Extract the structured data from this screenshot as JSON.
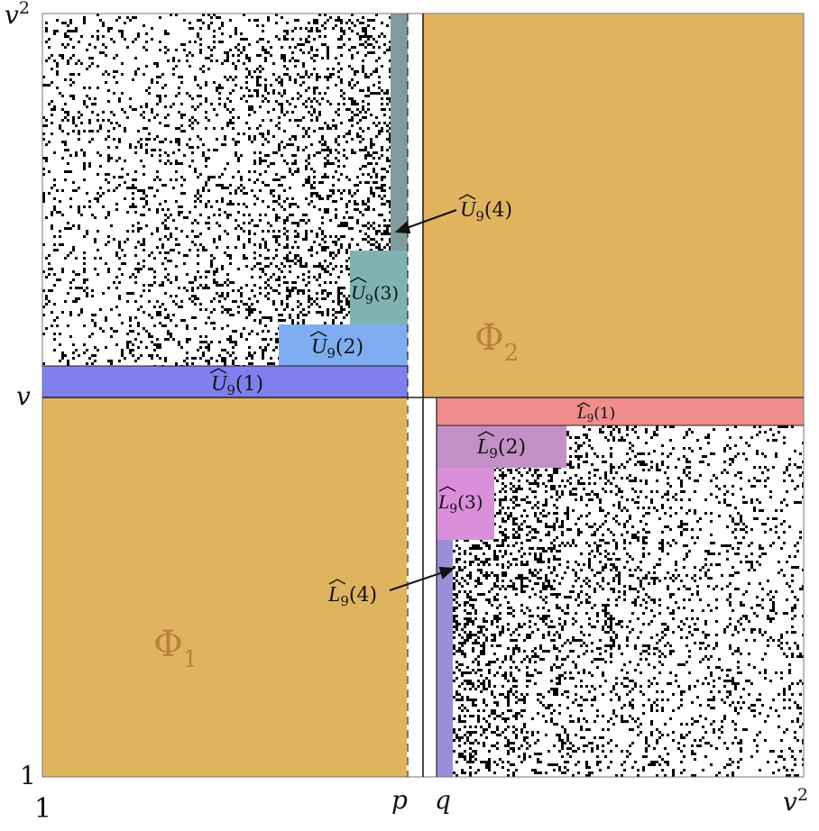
{
  "axes": {
    "x_origin": "1",
    "y_origin": "1",
    "y_mid": "v",
    "y_top": "v",
    "y_top_sup": "2",
    "x_p": "p",
    "x_q": "q",
    "x_end": "v",
    "x_end_sup": "2"
  },
  "regions": {
    "phi1": {
      "sym": "Φ",
      "sub": "1"
    },
    "phi2": {
      "sym": "Φ",
      "sub": "2"
    }
  },
  "upper_blocks": [
    {
      "letter": "U",
      "sub": "9",
      "arg": "(1)"
    },
    {
      "letter": "U",
      "sub": "9",
      "arg": "(2)"
    },
    {
      "letter": "U",
      "sub": "9",
      "arg": "(3)"
    },
    {
      "letter": "U",
      "sub": "9",
      "arg": "(4)"
    }
  ],
  "lower_blocks": [
    {
      "letter": "L",
      "sub": "9",
      "arg": "(1)"
    },
    {
      "letter": "L",
      "sub": "9",
      "arg": "(2)"
    },
    {
      "letter": "L",
      "sub": "9",
      "arg": "(3)"
    },
    {
      "letter": "L",
      "sub": "9",
      "arg": "(4)"
    }
  ],
  "colors": {
    "phi_fill": "#e0b45e",
    "phi_text": "#b9823c",
    "u1": "#7f7ff0",
    "u2": "#7fadf2",
    "u3": "#7fb3b2",
    "u4": "#7f9c9c",
    "l1": "#f08c8c",
    "l2": "#c48fc6",
    "l3": "#db8fdb",
    "l4": "#9a8fd6"
  }
}
